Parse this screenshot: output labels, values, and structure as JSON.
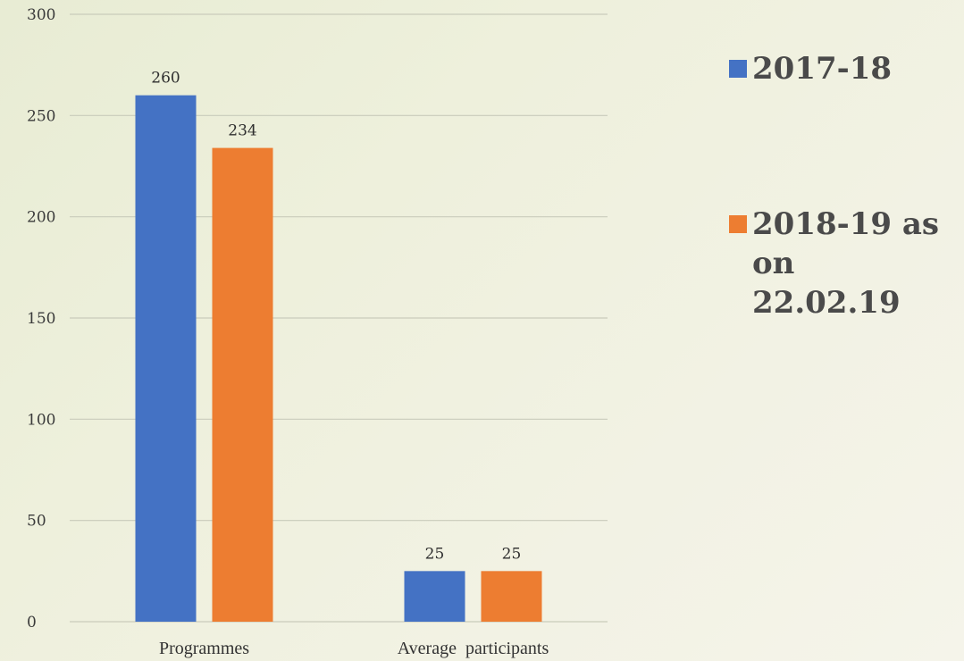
{
  "chart_data": {
    "type": "bar",
    "categories": [
      "Programmes",
      "Average  participants"
    ],
    "series": [
      {
        "name": "2017-18",
        "values": [
          260,
          25
        ],
        "color": "#4472C4"
      },
      {
        "name": "2018-19 as on 22.02.19",
        "values": [
          234,
          25
        ],
        "color": "#ED7D31"
      }
    ],
    "ylim": [
      0,
      300
    ],
    "yticks": [
      0,
      50,
      100,
      150,
      200,
      250,
      300
    ],
    "ytick_labels": [
      "0",
      "50",
      "100",
      "150",
      "200",
      "250",
      "300"
    ],
    "data_labels": true,
    "grid": true,
    "legend_position": "right"
  }
}
